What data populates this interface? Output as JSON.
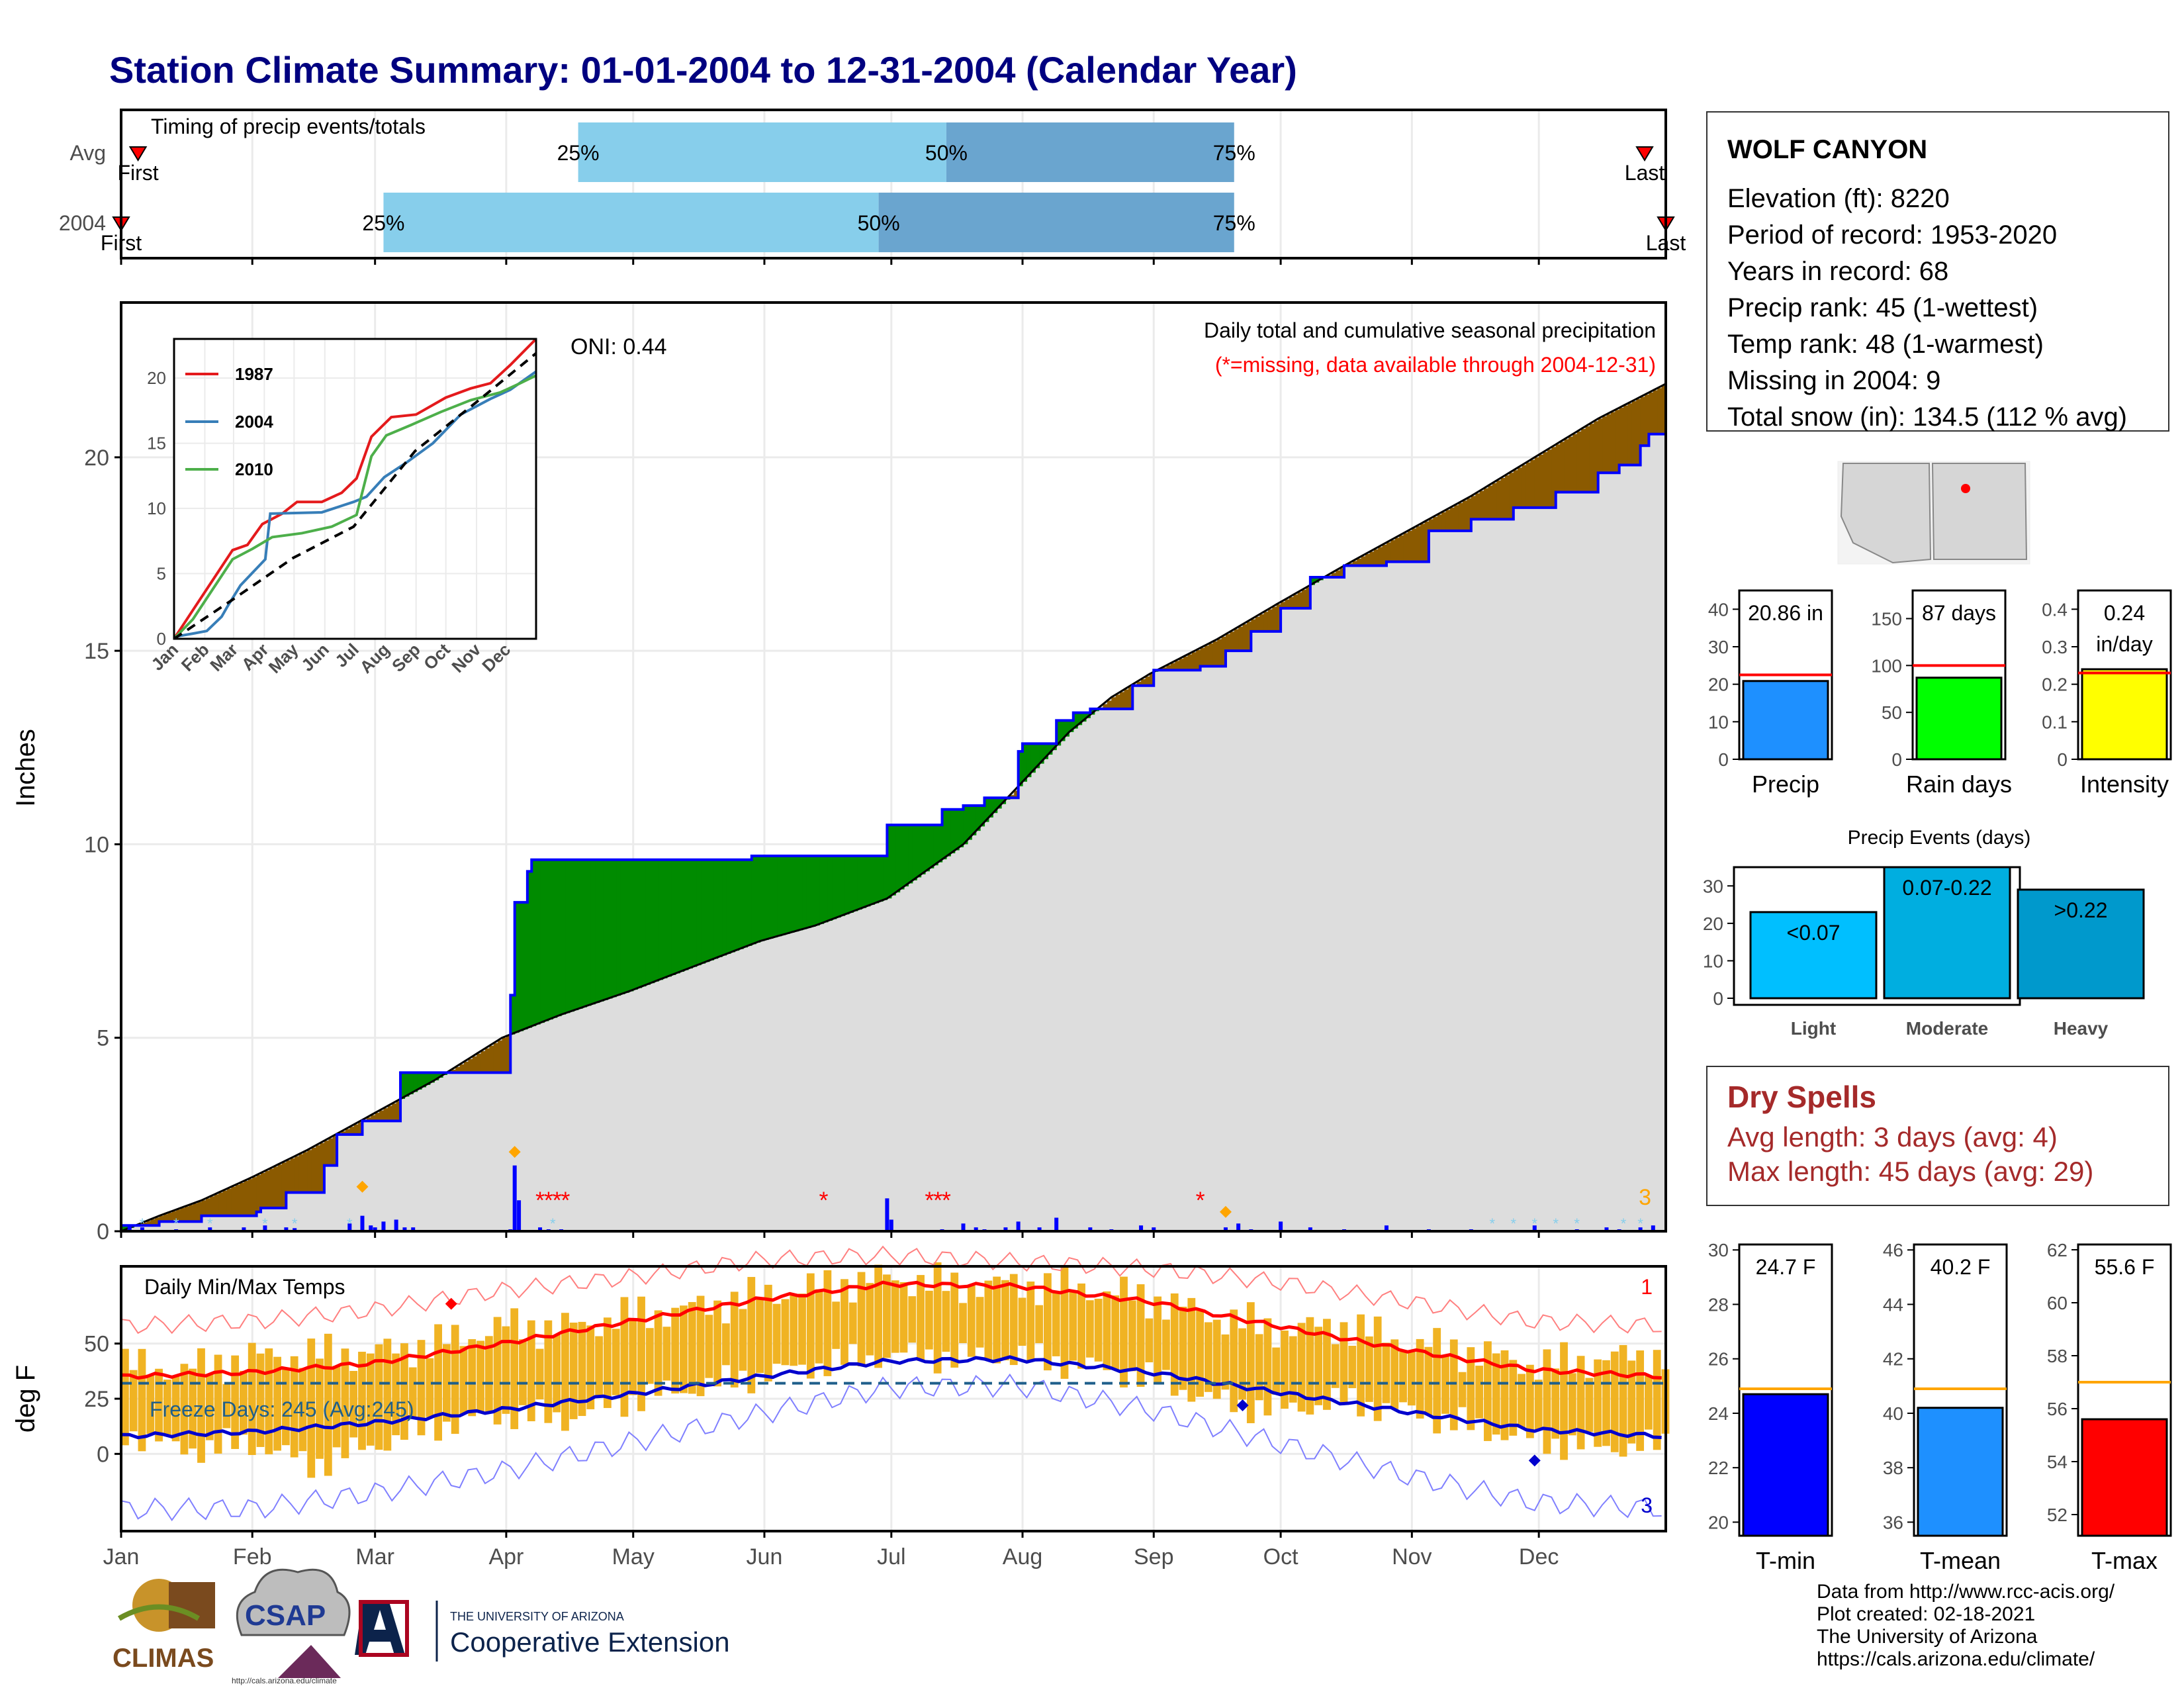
{
  "page": {
    "title": "Station Climate Summary: 01-01-2004 to 12-31-2004 (Calendar Year)",
    "credits": [
      "Data from http://www.rcc-acis.org/",
      "Plot created: 02-18-2021",
      "The University of Arizona",
      "https://cals.arizona.edu/climate/"
    ],
    "logos": {
      "climas": "CLIMAS",
      "csap": "CSAP",
      "csap_url": "http://cals.arizona.edu/climate",
      "ua_small": "THE UNIVERSITY OF ARIZONA",
      "ua_big": "Cooperative Extension"
    }
  },
  "station_info": {
    "name": "WOLF CANYON",
    "lines": [
      "Elevation (ft): 8220",
      "Period of record: 1953-2020",
      "Years in record: 68",
      "Precip rank: 45 (1-wettest)",
      "Temp rank: 48 (1-warmest)",
      "Missing in 2004: 9",
      "Total snow (in): 134.5 (112 % avg)"
    ]
  },
  "dry_spells": {
    "title": "Dry Spells",
    "avg_length": "Avg length: 3 days (avg: 4)",
    "max_length": "Max length: 45 days (avg: 29)"
  },
  "colors": {
    "title": "#000080",
    "deficit_green": "#008B00",
    "surplus_brown": "#8B5A00",
    "climatology_fill": "#dddddd",
    "obs_line": "#0000ff",
    "tmax_fill": "#f0b323",
    "tmax_line": "#ff0000",
    "tmin_line": "#0000cd",
    "light_blue": "#87ceeb",
    "steel_blue": "#6aa5cf",
    "dry_red": "#a52a2a"
  },
  "chart_data": [
    {
      "id": "timing",
      "type": "bar",
      "title": "Timing of precip events/totals",
      "categories": [
        "Avg",
        "2004"
      ],
      "marker_labels": [
        "First",
        "Last"
      ],
      "x_unit": "day of year",
      "xlim": [
        1,
        366
      ],
      "series": [
        {
          "name": "Avg",
          "first": 5,
          "p25": 109,
          "p50": 196,
          "p75": 264,
          "last": 361
        },
        {
          "name": "2004",
          "first": 1,
          "p25": 63,
          "p50": 180,
          "p75": 264,
          "last": 366
        }
      ],
      "percent_labels": [
        "25%",
        "50%",
        "75%"
      ]
    },
    {
      "id": "precip",
      "type": "area",
      "title": "Daily total and cumulative seasonal precipitation",
      "subtitle": "(*=missing, data available through 2004-12-31)",
      "annotation": "ONI: 0.44",
      "corner_count": "3",
      "ylabel": "Inches",
      "ylim": [
        0,
        24
      ],
      "yticks": [
        0,
        5,
        10,
        15,
        20
      ],
      "xlim": [
        1,
        366
      ],
      "climatology": {
        "x": [
          1,
          10,
          20,
          32,
          45,
          60,
          75,
          91,
          105,
          121,
          140,
          152,
          165,
          182,
          200,
          213,
          225,
          235,
          244,
          260,
          274,
          290,
          305,
          320,
          335,
          350,
          366
        ],
        "y": [
          0.0,
          0.4,
          0.8,
          1.4,
          2.1,
          3.0,
          3.9,
          5.0,
          5.6,
          6.2,
          7.0,
          7.5,
          7.9,
          8.6,
          10.0,
          11.5,
          12.9,
          13.8,
          14.4,
          15.3,
          16.2,
          17.2,
          18.1,
          19.0,
          20.0,
          21.0,
          21.9
        ]
      },
      "cumulative_2004": {
        "x": [
          1,
          10,
          20,
          33,
          34,
          40,
          49,
          52,
          55,
          58,
          60,
          61,
          67,
          68,
          93,
          94,
          97,
          98,
          150,
          181,
          182,
          186,
          195,
          200,
          202,
          205,
          213,
          214,
          222,
          226,
          230,
          235,
          240,
          245,
          250,
          256,
          262,
          268,
          275,
          282,
          290,
          300,
          310,
          320,
          330,
          340,
          350,
          355,
          360,
          362,
          366
        ],
        "y": [
          0.15,
          0.25,
          0.4,
          0.5,
          0.6,
          1.0,
          1.7,
          2.5,
          2.5,
          2.85,
          2.85,
          2.85,
          4.1,
          4.1,
          6.1,
          8.5,
          9.3,
          9.6,
          9.7,
          9.7,
          10.5,
          10.5,
          10.9,
          11.0,
          11.0,
          11.2,
          12.4,
          12.6,
          13.2,
          13.4,
          13.5,
          13.5,
          14.1,
          14.5,
          14.5,
          14.6,
          15.0,
          15.5,
          16.1,
          16.9,
          17.2,
          17.3,
          18.1,
          18.4,
          18.7,
          19.1,
          19.6,
          19.8,
          20.3,
          20.6,
          20.5
        ]
      },
      "daily_events": {
        "day": [
          3,
          6,
          14,
          22,
          30,
          35,
          40,
          42,
          55,
          58,
          60,
          61,
          63,
          66,
          68,
          70,
          93,
          94,
          95,
          100,
          102,
          105,
          120,
          150,
          182,
          183,
          195,
          200,
          203,
          205,
          210,
          213,
          218,
          222,
          230,
          235,
          242,
          245,
          262,
          265,
          268,
          275,
          282,
          290,
          300,
          310,
          320,
          335,
          345,
          352,
          355,
          360,
          363
        ],
        "inches": [
          0.15,
          0.1,
          0.05,
          0.1,
          0.1,
          0.15,
          0.1,
          0.08,
          0.2,
          0.4,
          0.15,
          0.1,
          0.25,
          0.3,
          0.1,
          0.1,
          0.05,
          1.7,
          0.8,
          0.1,
          0.05,
          0.05,
          0.02,
          0.02,
          0.85,
          0.3,
          0.05,
          0.2,
          0.1,
          0.05,
          0.1,
          0.25,
          0.1,
          0.35,
          0.1,
          0.05,
          0.15,
          0.1,
          0.1,
          0.2,
          0.05,
          0.25,
          0.1,
          0.05,
          0.15,
          0.05,
          0.05,
          0.15,
          0.05,
          0.1,
          0.05,
          0.1,
          0.15
        ]
      },
      "missing_days": [
        100,
        102,
        104,
        106,
        167,
        192,
        194,
        196,
        256
      ],
      "snow_days": [
        6,
        14,
        22,
        35,
        42,
        55,
        103,
        325,
        330,
        335,
        340,
        345,
        356,
        360
      ]
    },
    {
      "id": "inset",
      "type": "line",
      "xticks": [
        "Jan",
        "Feb",
        "Mar",
        "Apr",
        "May",
        "Jun",
        "Jul",
        "Aug",
        "Sep",
        "Oct",
        "Nov",
        "Dec"
      ],
      "yticks": [
        0,
        5,
        10,
        15,
        20
      ],
      "ylim": [
        0,
        23
      ],
      "series": [
        {
          "name": "1987",
          "color": "#e41a1c",
          "x": [
            1,
            20,
            40,
            60,
            75,
            90,
            110,
            125,
            150,
            170,
            185,
            200,
            220,
            245,
            275,
            300,
            320,
            340,
            366
          ],
          "y": [
            0,
            2.2,
            4.5,
            6.8,
            7.2,
            8.8,
            9.6,
            10.5,
            10.5,
            11.2,
            12.3,
            15.5,
            17.0,
            17.2,
            18.5,
            19.2,
            19.6,
            21.0,
            23.0
          ]
        },
        {
          "name": "2004",
          "color": "#377eb8",
          "x": [
            1,
            20,
            34,
            49,
            55,
            68,
            93,
            98,
            150,
            182,
            195,
            213,
            235,
            262,
            290,
            320,
            340,
            366
          ],
          "y": [
            0.15,
            0.4,
            0.6,
            1.7,
            2.5,
            4.1,
            6.1,
            9.6,
            9.7,
            10.5,
            10.9,
            12.4,
            13.5,
            15.0,
            17.2,
            18.4,
            19.1,
            20.5
          ]
        },
        {
          "name": "2010",
          "color": "#4daf4a",
          "x": [
            1,
            20,
            40,
            60,
            80,
            100,
            130,
            160,
            185,
            200,
            215,
            240,
            270,
            300,
            330,
            350,
            366
          ],
          "y": [
            0,
            1.5,
            3.8,
            6.1,
            6.9,
            7.8,
            8.1,
            8.6,
            9.5,
            14.0,
            15.6,
            16.4,
            17.4,
            18.3,
            18.9,
            19.6,
            20.2
          ]
        },
        {
          "name": "",
          "color": "#000000",
          "dashed": true,
          "x": [
            1,
            60,
            121,
            182,
            213,
            244,
            305,
            366
          ],
          "y": [
            0,
            3.0,
            6.2,
            8.6,
            11.5,
            14.4,
            18.1,
            21.9
          ]
        }
      ]
    },
    {
      "id": "temps",
      "type": "bar",
      "title": "Daily Min/Max Temps",
      "ylabel": "deg F",
      "ylim": [
        -35,
        85
      ],
      "yticks": [
        0,
        25,
        50
      ],
      "xticks": [
        "Jan",
        "Feb",
        "Mar",
        "Apr",
        "May",
        "Jun",
        "Jul",
        "Aug",
        "Sep",
        "Oct",
        "Nov",
        "Dec"
      ],
      "freeze_label": "Freeze Days: 245 (Avg:245)",
      "freeze_line": 32,
      "corner_top": "1",
      "corner_bottom": "3",
      "avg_tmax": {
        "x": [
          1,
          32,
          60,
          91,
          121,
          152,
          182,
          213,
          244,
          274,
          305,
          335,
          366
        ],
        "y": [
          35,
          37,
          41,
          50,
          60,
          70,
          77,
          76,
          69,
          58,
          47,
          38,
          35
        ]
      },
      "avg_tmin": {
        "x": [
          1,
          32,
          60,
          91,
          121,
          152,
          182,
          213,
          244,
          274,
          305,
          335,
          366
        ],
        "y": [
          8,
          10,
          14,
          20,
          27,
          35,
          42,
          43,
          37,
          28,
          19,
          11,
          8
        ]
      },
      "record_max": {
        "x": [
          1,
          32,
          60,
          91,
          121,
          152,
          182,
          213,
          244,
          274,
          305,
          335,
          366
        ],
        "y": [
          58,
          60,
          65,
          74,
          80,
          88,
          90,
          87,
          84,
          78,
          69,
          60,
          58
        ]
      },
      "record_min": {
        "x": [
          1,
          32,
          60,
          91,
          121,
          152,
          182,
          213,
          244,
          274,
          305,
          335,
          366
        ],
        "y": [
          -25,
          -25,
          -18,
          -8,
          5,
          18,
          30,
          31,
          20,
          5,
          -10,
          -22,
          -25
        ]
      },
      "obs_band": {
        "x": [
          1,
          15,
          32,
          45,
          60,
          75,
          91,
          105,
          121,
          136,
          152,
          167,
          182,
          197,
          213,
          228,
          244,
          259,
          274,
          289,
          305,
          320,
          335,
          350,
          366
        ],
        "tmax": [
          40,
          38,
          44,
          45,
          46,
          50,
          58,
          57,
          63,
          66,
          72,
          76,
          80,
          76,
          77,
          75,
          70,
          62,
          56,
          58,
          50,
          46,
          40,
          43,
          45
        ],
        "tmin": [
          10,
          2,
          5,
          -5,
          4,
          13,
          18,
          16,
          25,
          30,
          36,
          41,
          45,
          44,
          44,
          40,
          34,
          24,
          20,
          24,
          19,
          12,
          6,
          3,
          4
        ]
      },
      "record_markers": [
        {
          "day": 79,
          "value": 68,
          "color": "#ff0000"
        },
        {
          "day": 266,
          "value": 22,
          "color": "#0000cd"
        },
        {
          "day": 335,
          "value": -3,
          "color": "#0000cd"
        }
      ]
    },
    {
      "id": "precip_bars",
      "type": "bar",
      "categories": [
        "Precip",
        "Rain days",
        "Intensity"
      ],
      "values": [
        20.86,
        87,
        0.24
      ],
      "labels": [
        "20.86 in",
        "87 days",
        "0.24 in/day"
      ],
      "averages": [
        22.5,
        100,
        0.23
      ],
      "ylims": [
        [
          0,
          45
        ],
        [
          0,
          180
        ],
        [
          0,
          0.45
        ]
      ],
      "yticks": [
        [
          0,
          10,
          20,
          30,
          40
        ],
        [
          0,
          50,
          100,
          150
        ],
        [
          0.0,
          0.1,
          0.2,
          0.3,
          0.4
        ]
      ],
      "fills": [
        "#1e90ff",
        "#00ff00",
        "#ffff00"
      ]
    },
    {
      "id": "events",
      "type": "bar",
      "title": "Precip Events (days)",
      "categories": [
        "Light",
        "Moderate",
        "Heavy"
      ],
      "values": [
        23,
        35,
        29
      ],
      "labels": [
        "<0.07",
        "0.07-0.22",
        ">0.22"
      ],
      "ylim": [
        0,
        35
      ],
      "yticks": [
        0,
        10,
        20,
        30
      ],
      "fills": [
        "#00bfff",
        "#00aee0",
        "#0099cc"
      ]
    },
    {
      "id": "temp_bars",
      "type": "bar",
      "categories": [
        "T-min",
        "T-mean",
        "T-max"
      ],
      "values": [
        24.7,
        40.2,
        55.6
      ],
      "labels": [
        "24.7 F",
        "40.2 F",
        "55.6 F"
      ],
      "averages": [
        24.9,
        40.9,
        57.0
      ],
      "ylims": [
        [
          19.5,
          30.2
        ],
        [
          35.5,
          46.2
        ],
        [
          51.2,
          62.2
        ]
      ],
      "yticks": [
        [
          20,
          22,
          24,
          26,
          28,
          30
        ],
        [
          36,
          38,
          40,
          42,
          44,
          46
        ],
        [
          52,
          54,
          56,
          58,
          60,
          62
        ]
      ],
      "fills": [
        "#0000ff",
        "#1e90ff",
        "#ff0000"
      ]
    }
  ]
}
